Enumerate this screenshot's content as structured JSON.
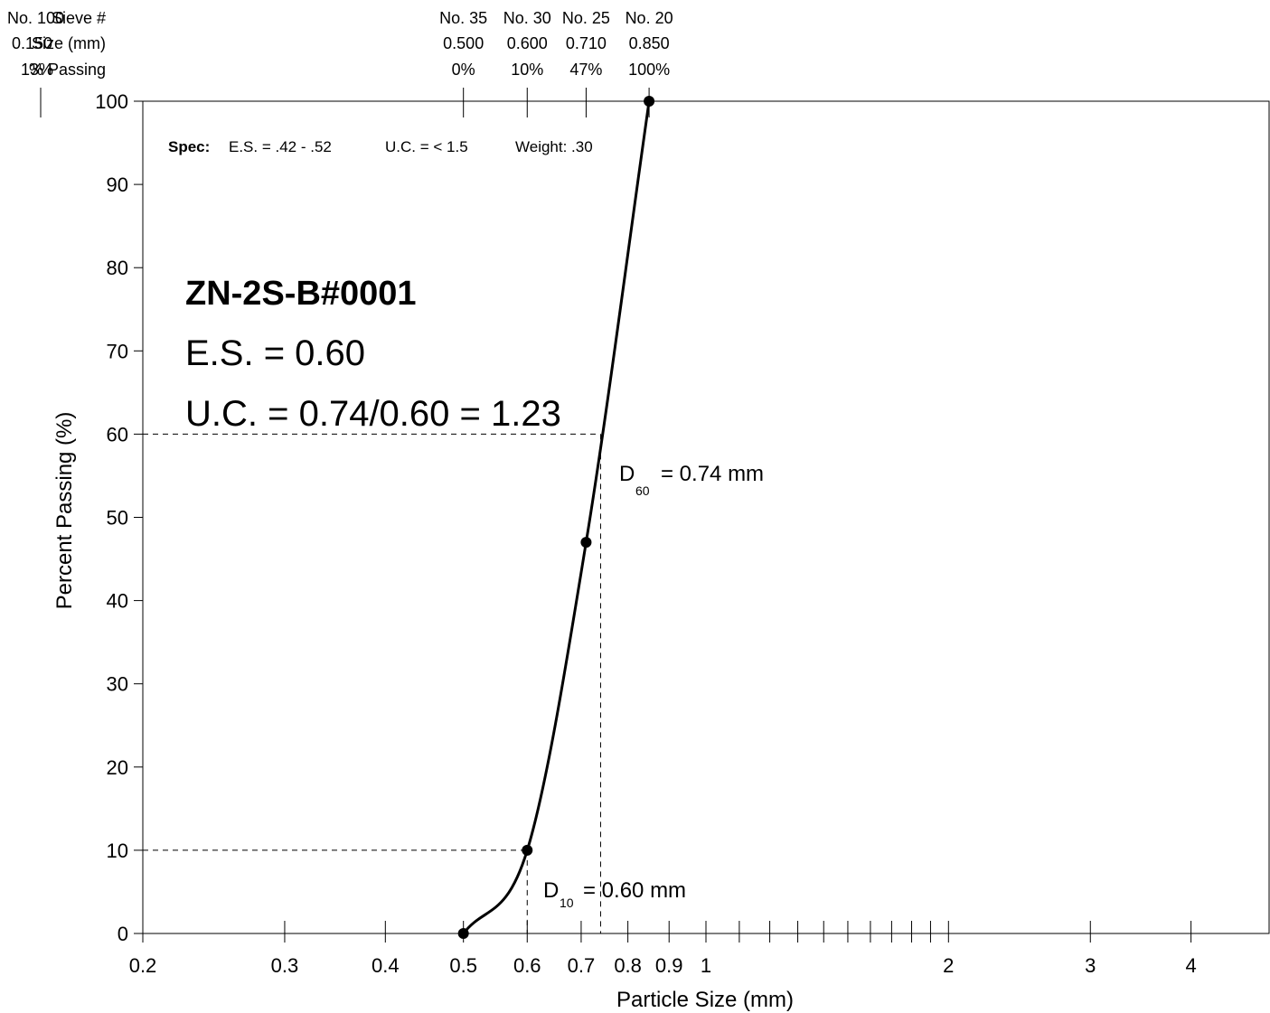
{
  "sieve_header": {
    "row1_label": "Sieve #",
    "row2_label": "Size (mm)",
    "row3_label": "% Passing",
    "overlapped": {
      "sieve": "No. 100",
      "size": "0.150",
      "passing": "13%"
    }
  },
  "spec": {
    "label": "Spec:",
    "es": "E.S. = .42 - .52",
    "uc": "U.C. = < 1.5",
    "weight": "Weight: .30"
  },
  "sample": {
    "id": "ZN-2S-B#0001",
    "es": "E.S. = 0.60",
    "uc": "U.C. = 0.74/0.60 = 1.23"
  },
  "annotations": {
    "d60": {
      "sym": "D",
      "sub": "60",
      "text": "= 0.74 mm",
      "value": 0.74,
      "pct": 60
    },
    "d10": {
      "sym": "D",
      "sub": "10",
      "text": "= 0.60 mm",
      "value": 0.6,
      "pct": 10
    }
  },
  "chart_data": {
    "type": "line",
    "title": "",
    "xlabel": "Particle Size (mm)",
    "ylabel": "Percent Passing (%)",
    "xscale": "log",
    "xlim": [
      0.2,
      5.0
    ],
    "ylim": [
      0,
      100
    ],
    "grid": false,
    "xticks": [
      {
        "v": 0.2,
        "label": "0.2"
      },
      {
        "v": 0.3,
        "label": "0.3"
      },
      {
        "v": 0.4,
        "label": "0.4"
      },
      {
        "v": 0.5,
        "label": "0.5"
      },
      {
        "v": 0.6,
        "label": "0.6"
      },
      {
        "v": 0.7,
        "label": "0.7"
      },
      {
        "v": 0.8,
        "label": "0.8"
      },
      {
        "v": 0.9,
        "label": "0.9"
      },
      {
        "v": 1,
        "label": "1"
      },
      {
        "v": 2,
        "label": "2"
      },
      {
        "v": 3,
        "label": "3"
      },
      {
        "v": 4,
        "label": "4"
      }
    ],
    "minor_xticks": [
      1.1,
      1.2,
      1.3,
      1.4,
      1.5,
      1.6,
      1.7,
      1.8,
      1.9
    ],
    "yticks": [
      0,
      10,
      20,
      30,
      40,
      50,
      60,
      70,
      80,
      90,
      100
    ],
    "series": [
      {
        "points": [
          {
            "x": 0.5,
            "y": 0
          },
          {
            "x": 0.6,
            "y": 10
          },
          {
            "x": 0.71,
            "y": 47
          },
          {
            "x": 0.85,
            "y": 100
          }
        ]
      }
    ],
    "sieves": [
      {
        "sieve": "No. 35",
        "size": "0.500",
        "passing": "0%",
        "x": 0.5
      },
      {
        "sieve": "No. 30",
        "size": "0.600",
        "passing": "10%",
        "x": 0.6
      },
      {
        "sieve": "No. 25",
        "size": "0.710",
        "passing": "47%",
        "x": 0.71
      },
      {
        "sieve": "No. 20",
        "size": "0.850",
        "passing": "100%",
        "x": 0.85
      }
    ]
  }
}
